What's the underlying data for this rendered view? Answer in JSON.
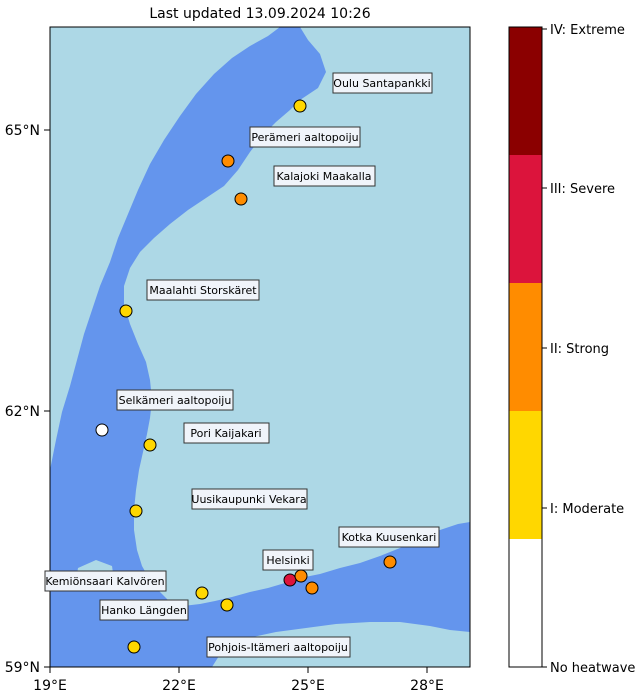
{
  "title": "Last updated 13.09.2024 10:26",
  "map": {
    "sea_color": "#6495ed",
    "land_color": "#add8e6",
    "lat_ticks": [
      "65°N",
      "62°N",
      "59°N"
    ],
    "lon_ticks": [
      "19°E",
      "22°E",
      "25°E",
      "28°E"
    ]
  },
  "stations": [
    {
      "name": "Oulu Santapankki",
      "level": 1,
      "color": "#ffd700"
    },
    {
      "name": "Perämeri aaltopoiju",
      "level": 2,
      "color": "#ff8c00"
    },
    {
      "name": "Kalajoki Maakalla",
      "level": 2,
      "color": "#ff8c00"
    },
    {
      "name": "Maalahti Storskäret",
      "level": 1,
      "color": "#ffd700"
    },
    {
      "name": "Selkämeri aaltopoiju",
      "level": 0,
      "color": "#ffffff"
    },
    {
      "name": "Pori Kaijakari",
      "level": 1,
      "color": "#ffd700"
    },
    {
      "name": "Uusikaupunki Vekara",
      "level": 1,
      "color": "#ffd700"
    },
    {
      "name": "Kotka Kuusenkari",
      "level": 2,
      "color": "#ff8c00"
    },
    {
      "name": "Helsinki",
      "level": 3,
      "color": "#dc143c"
    },
    {
      "name": "Kemiönsaari Kalvören",
      "level": 1,
      "color": "#ffd700"
    },
    {
      "name": "Hanko Längden",
      "level": 1,
      "color": "#ffd700"
    },
    {
      "name": "Pohjois-Itämeri aaltopoiju",
      "level": 1,
      "color": "#ffd700"
    }
  ],
  "extra_markers": [
    {
      "level": 2,
      "color": "#ff8c00"
    },
    {
      "level": 2,
      "color": "#ff8c00"
    }
  ],
  "legend": {
    "levels": [
      {
        "label": "No heatwave",
        "color": "#ffffff"
      },
      {
        "label": "I: Moderate",
        "color": "#ffd700"
      },
      {
        "label": "II: Strong",
        "color": "#ff8c00"
      },
      {
        "label": "III: Severe",
        "color": "#dc143c"
      },
      {
        "label": "IV: Extreme",
        "color": "#8b0000"
      }
    ]
  }
}
